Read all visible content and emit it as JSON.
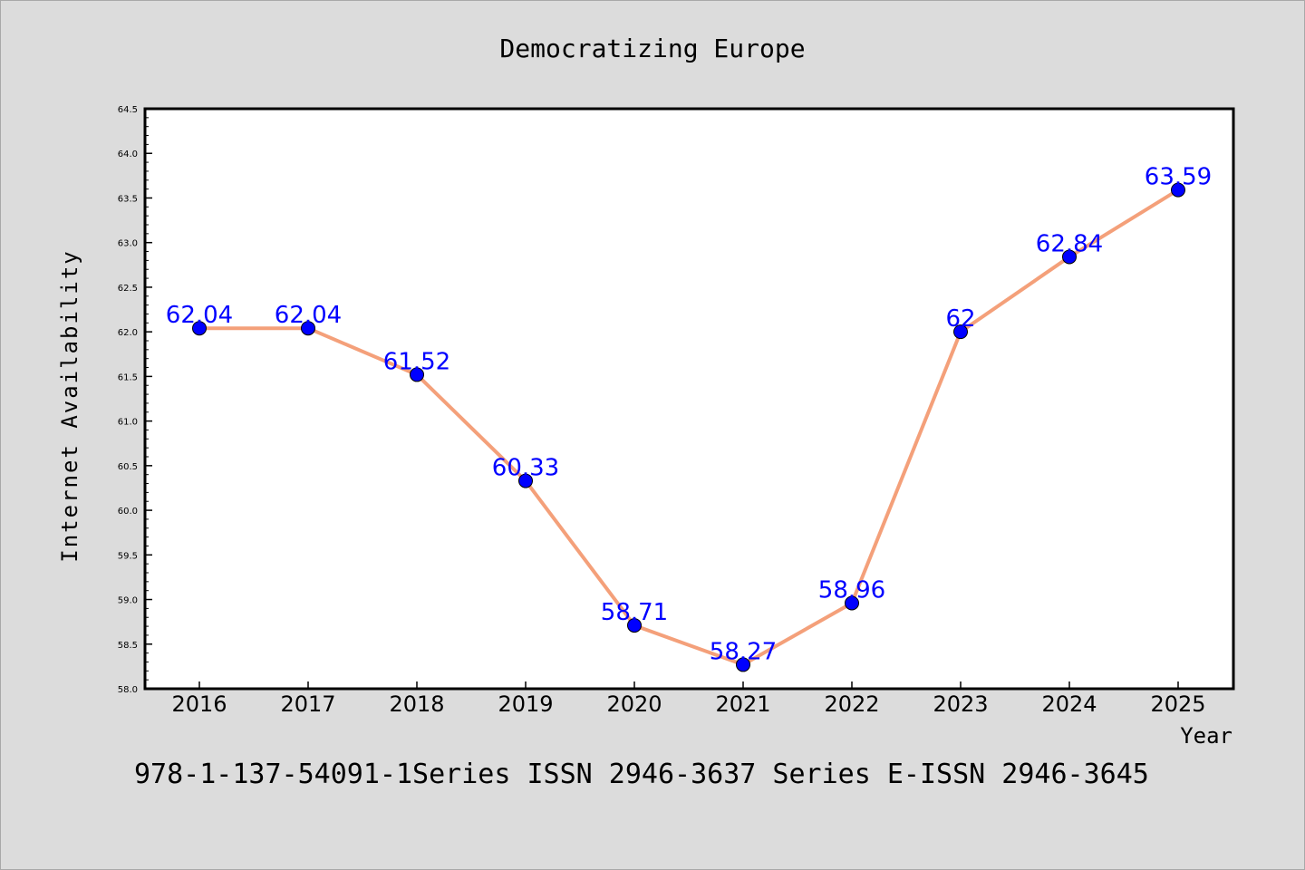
{
  "chart_data": {
    "type": "line",
    "title": "Democratizing Europe",
    "xlabel": "Year",
    "ylabel": "Internet Availability",
    "categories": [
      "2016",
      "2017",
      "2018",
      "2019",
      "2020",
      "2021",
      "2022",
      "2023",
      "2024",
      "2025"
    ],
    "series": [
      {
        "values": [
          62.04,
          62.04,
          61.52,
          60.33,
          58.71,
          58.27,
          58.96,
          62,
          62.84,
          63.59
        ],
        "data_labels": [
          "62.04",
          "62.04",
          "61.52",
          "60.33",
          "58.71",
          "58.27",
          "58.96",
          "62",
          "62.84",
          "63.59"
        ],
        "line_color": "#f4a07a",
        "marker_color": "#0000ff"
      }
    ],
    "ylim": [
      58.0,
      64.5
    ],
    "yticks": [
      "58.0",
      "58.5",
      "59.0",
      "59.5",
      "60.0",
      "60.5",
      "61.0",
      "61.5",
      "62.0",
      "62.5",
      "63.0",
      "63.5",
      "64.0",
      "64.5"
    ],
    "grid": false,
    "legend": "none"
  },
  "footer_text": "978-1-137-54091-1Series ISSN 2946-3637 Series E-ISSN 2946-3645",
  "colors": {
    "background": "#dcdcdc",
    "plot_background": "#ffffff",
    "data_label": "#0000ff"
  }
}
